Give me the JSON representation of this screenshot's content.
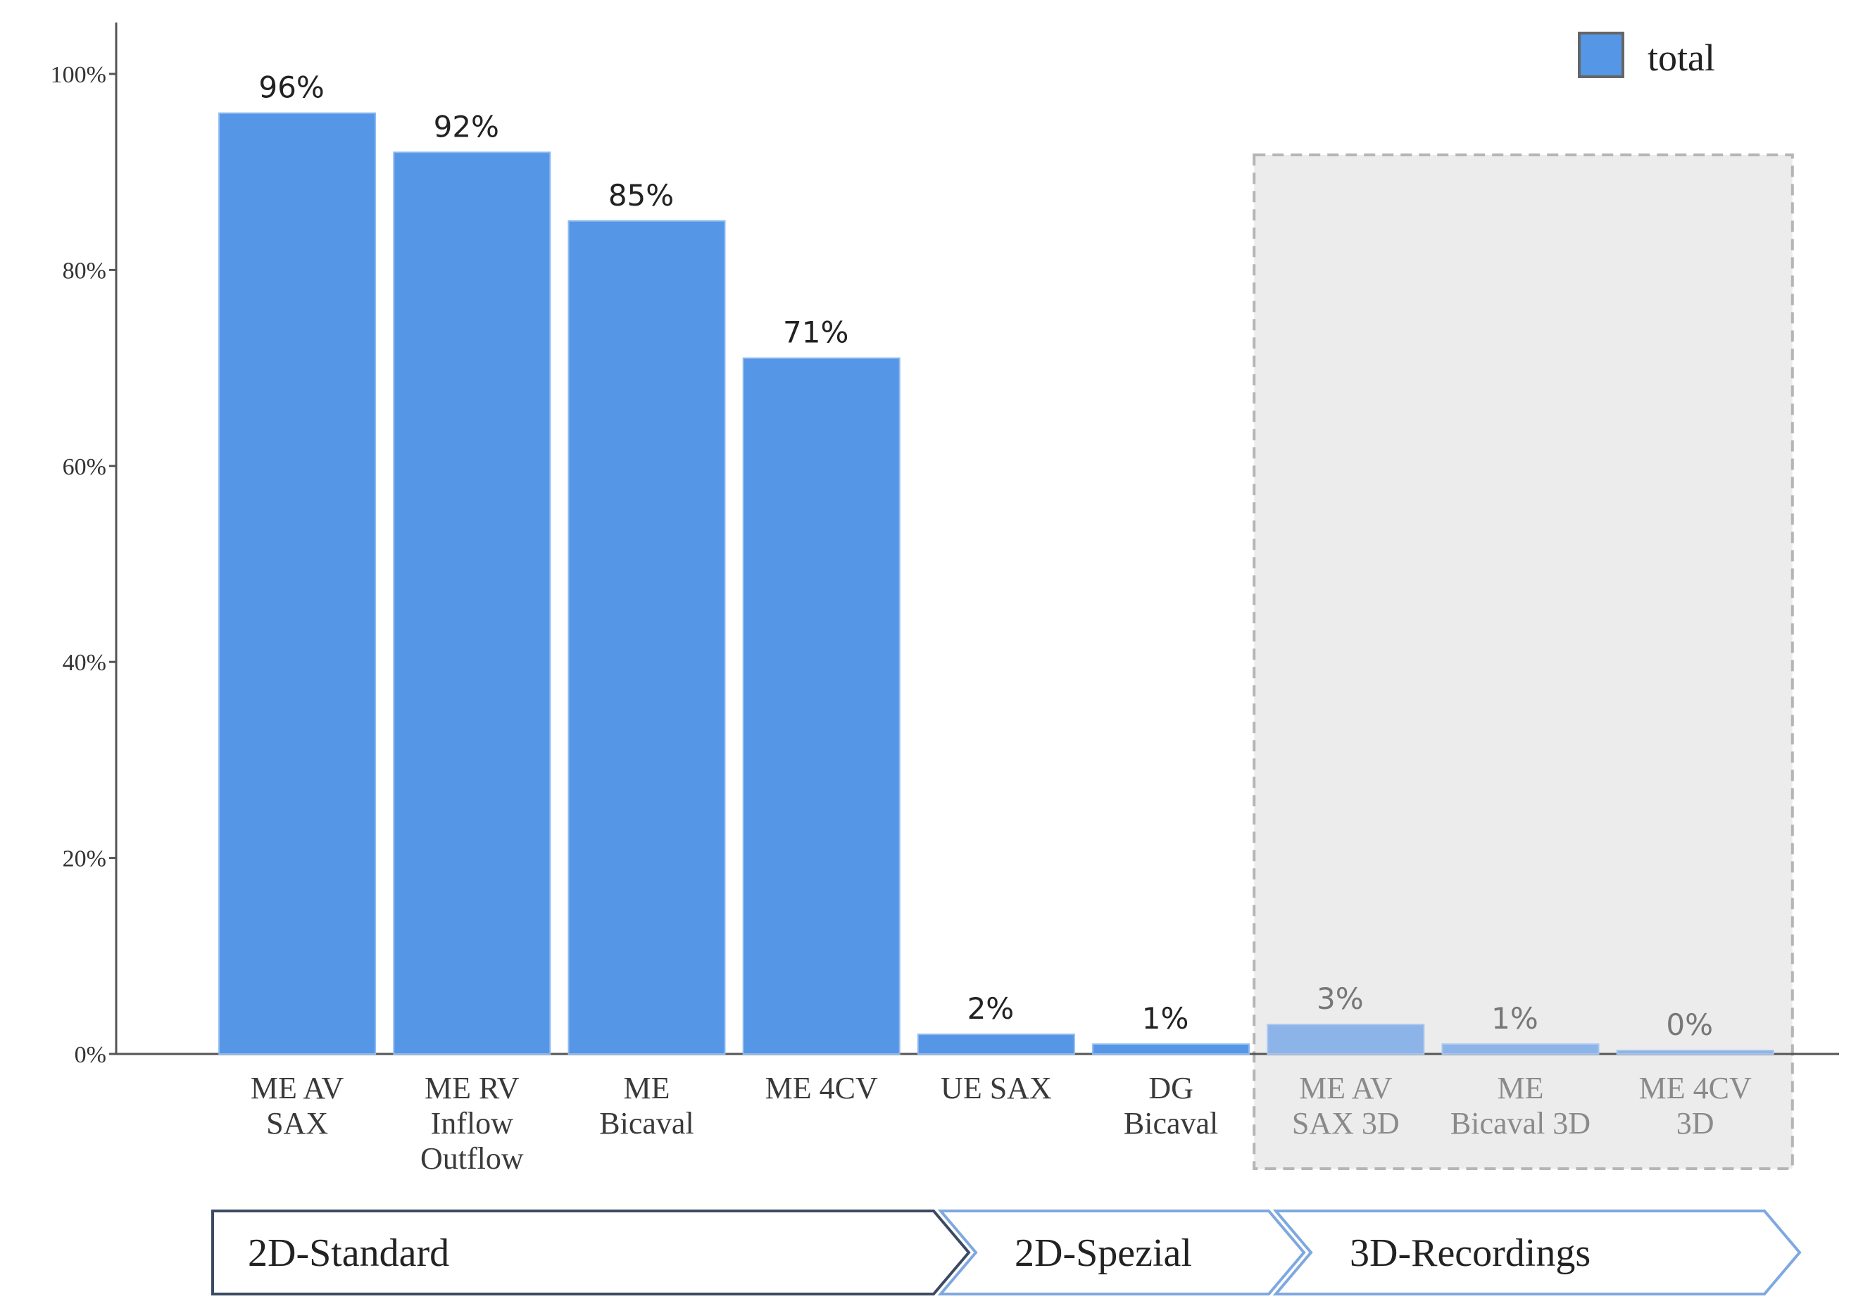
{
  "chart_data": {
    "type": "bar",
    "title": "",
    "xlabel": "",
    "ylabel": "",
    "ylim": [
      0,
      100
    ],
    "yticks": [
      0,
      20,
      40,
      60,
      80,
      100
    ],
    "ytick_labels": [
      "0%",
      "20%",
      "40%",
      "60%",
      "80%",
      "100%"
    ],
    "categories": [
      [
        "ME AV",
        "SAX"
      ],
      [
        "ME RV",
        "Inflow",
        "Outflow"
      ],
      [
        "ME",
        "Bicaval"
      ],
      [
        "ME 4CV"
      ],
      [
        "UE SAX"
      ],
      [
        "DG",
        "Bicaval"
      ],
      [
        "ME AV",
        "SAX 3D"
      ],
      [
        "ME",
        "Bicaval 3D"
      ],
      [
        "ME 4CV",
        "3D"
      ]
    ],
    "series": [
      {
        "name": "total",
        "values": [
          96,
          92,
          85,
          71,
          2,
          1,
          3,
          1,
          0
        ],
        "data_labels": [
          "96%",
          "92%",
          "85%",
          "71%",
          "2%",
          "1%",
          "3%",
          "1%",
          "0%"
        ]
      }
    ],
    "legend": {
      "position": "top-right",
      "entries": [
        "total"
      ]
    },
    "grid": false,
    "colors": {
      "bar": "#5596e6",
      "bar_highlighted": "#8cb4e8",
      "highlight_box": "#ececec"
    },
    "highlighted_categories": [
      6,
      7,
      8
    ],
    "groups": [
      {
        "label": "2D-Standard",
        "start": 0,
        "end": 3
      },
      {
        "label": "2D-Spezial",
        "start": 4,
        "end": 5
      },
      {
        "label": "3D-Recordings",
        "start": 6,
        "end": 8
      }
    ]
  }
}
